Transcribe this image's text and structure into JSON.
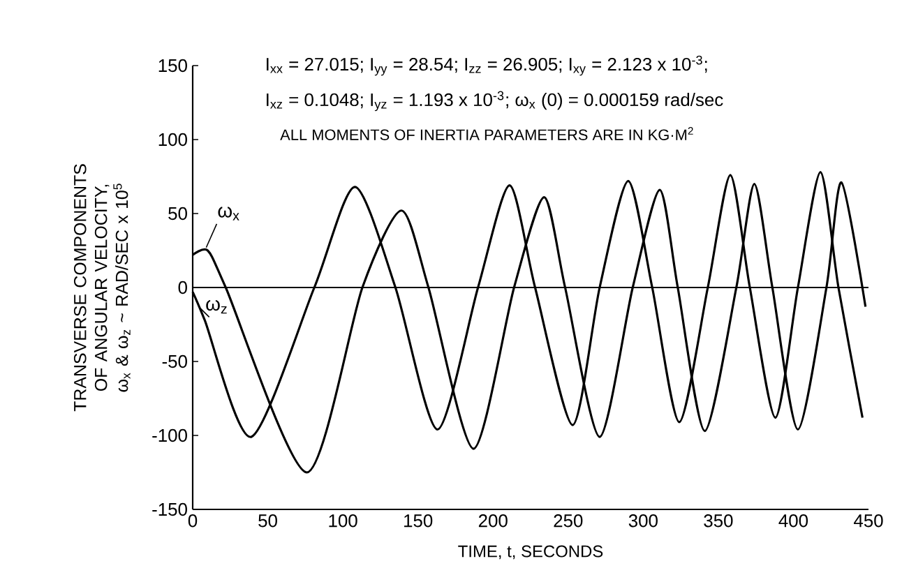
{
  "chart_data": {
    "type": "line",
    "xlabel": "TIME, t, SECONDS",
    "ylabel": "TRANSVERSE COMPONENTS OF ANGULAR VELOCITY, ω$_{x}$ & ω$_{z}$ ~ RAD/SEC x 10$^{5}$",
    "xlim": [
      0,
      450
    ],
    "xticks": [
      0,
      50,
      100,
      150,
      200,
      250,
      300,
      350,
      400,
      450
    ],
    "ylim": [
      -150,
      150
    ],
    "yticks": [
      -150,
      -100,
      -50,
      0,
      50,
      100,
      150
    ],
    "ref_lines": [
      {
        "axis": "y",
        "value": 0
      }
    ],
    "annotations": [
      "I$_{xx}$ = 27.015; I$_{yy}$ = 28.54; I$_{zz}$ = 26.905; I$_{xy}$ = 2.123 x 10$^{-3}$;",
      "I$_{xz}$ = 0.1048; I$_{yz}$ = 1.193 x 10$^{-3}$; ω$_{x}$ (0) = 0.000159 rad/sec",
      "ALL MOMENTS OF INERTIA PARAMETERS ARE IN KG·M$^{2}$"
    ],
    "series": [
      {
        "name": "ω$_{x}$",
        "color": "#000000",
        "x": [
          0,
          10,
          22,
          76,
          113,
          139,
          157,
          187,
          214,
          234,
          248,
          271,
          293,
          311,
          323,
          341,
          362,
          374,
          386,
          403,
          422,
          432,
          448
        ],
        "values": [
          22,
          25,
          0,
          -125,
          0,
          52,
          0,
          -109,
          0,
          61,
          0,
          -101,
          0,
          66,
          0,
          -97,
          0,
          70,
          0,
          -96,
          0,
          71,
          -13
        ]
      },
      {
        "name": "ω$_{z}$",
        "color": "#000000",
        "x": [
          0,
          8,
          39,
          81,
          108,
          135,
          163,
          190,
          211,
          228,
          253,
          271,
          290,
          306,
          324,
          343,
          358,
          371,
          388,
          403,
          418,
          430,
          446
        ],
        "values": [
          -3,
          -22,
          -101,
          0,
          68,
          0,
          -96,
          0,
          69,
          0,
          -93,
          0,
          72,
          0,
          -91,
          0,
          76,
          0,
          -88,
          0,
          78,
          0,
          -88
        ]
      }
    ]
  }
}
